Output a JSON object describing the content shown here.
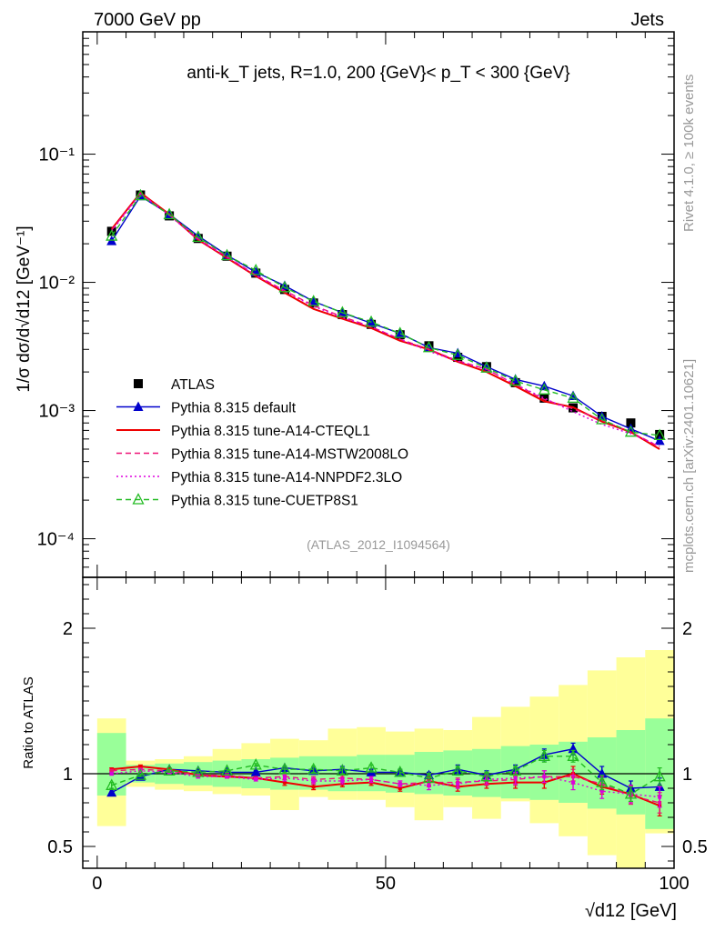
{
  "header": {
    "left": "7000 GeV pp",
    "right": "Jets"
  },
  "side_texts": {
    "rivet": "Rivet 4.1.0, ≥ 100k events",
    "mcplots": "mcplots.cern.ch [arXiv:2401.10621]"
  },
  "plot_title": "anti-k_T jets, R=1.0, 200 {GeV}< p_T < 300 {GeV}",
  "analysis_id": "(ATLAS_2012_I1094564)",
  "colors": {
    "atlas": "#000000",
    "default": "#0000cc",
    "cteql1": "#ee0000",
    "mstw": "#ee1177",
    "nnpdf": "#dd00dd",
    "cuetp8s1": "#22bb22",
    "band_inner": "#99ff99",
    "band_outer": "#ffff99"
  },
  "chart_data": [
    {
      "type": "line",
      "panel": "main",
      "ylabel": "1/σ dσ/d√d12 [GeV⁻¹]",
      "yscale": "log",
      "ylim": [
        5e-05,
        0.9
      ],
      "xlim": [
        -2.5,
        100
      ],
      "y_ticks": [
        {
          "value": 0.1,
          "label": "10⁻¹"
        },
        {
          "value": 0.01,
          "label": "10⁻²"
        },
        {
          "value": 0.001,
          "label": "10⁻³"
        },
        {
          "value": 0.0001,
          "label": "10⁻⁴"
        }
      ],
      "x": [
        2.5,
        7.5,
        12.5,
        17.5,
        22.5,
        27.5,
        32.5,
        37.5,
        42.5,
        47.5,
        52.5,
        57.5,
        62.5,
        67.5,
        72.5,
        77.5,
        82.5,
        87.5,
        92.5,
        97.5
      ],
      "series": [
        {
          "name": "ATLAS",
          "key": "atlas",
          "style": "square",
          "values": [
            0.025,
            0.048,
            0.033,
            0.022,
            0.016,
            0.0118,
            0.0088,
            0.0069,
            0.0056,
            0.0047,
            0.0039,
            0.0032,
            0.0026,
            0.0022,
            0.00165,
            0.00125,
            0.00105,
            0.0009,
            0.0008,
            0.00065
          ]
        },
        {
          "name": "Pythia 8.315 default",
          "key": "default",
          "style": "triangle-filled",
          "values": [
            0.021,
            0.047,
            0.034,
            0.023,
            0.0163,
            0.012,
            0.0094,
            0.0071,
            0.0058,
            0.0048,
            0.004,
            0.0031,
            0.0028,
            0.0022,
            0.00175,
            0.00155,
            0.0013,
            0.0009,
            0.00072,
            0.00058
          ]
        },
        {
          "name": "Pythia 8.315 tune-A14-CTEQL1",
          "key": "cteql1",
          "style": "solid",
          "values": [
            0.026,
            0.05,
            0.034,
            0.0215,
            0.0155,
            0.0112,
            0.0083,
            0.0062,
            0.0052,
            0.0044,
            0.0035,
            0.003,
            0.0024,
            0.002,
            0.00155,
            0.00118,
            0.00106,
            0.00082,
            0.00068,
            0.0005
          ]
        },
        {
          "name": "Pythia 8.315 tune-A14-MSTW2008LO",
          "key": "mstw",
          "style": "dashed",
          "values": [
            0.0255,
            0.0495,
            0.0335,
            0.0218,
            0.0158,
            0.0114,
            0.0086,
            0.0066,
            0.0054,
            0.0045,
            0.0036,
            0.003,
            0.00245,
            0.0021,
            0.0016,
            0.00122,
            0.00103,
            0.00084,
            0.00068,
            0.00052
          ]
        },
        {
          "name": "Pythia 8.315 tune-A14-NNPDF2.3LO",
          "key": "nnpdf",
          "style": "dotted",
          "values": [
            0.025,
            0.049,
            0.0333,
            0.0216,
            0.0157,
            0.0113,
            0.0085,
            0.0065,
            0.0053,
            0.0045,
            0.0036,
            0.0029,
            0.00242,
            0.0021,
            0.0016,
            0.00125,
            0.00098,
            0.00078,
            0.00066,
            0.00053
          ]
        },
        {
          "name": "Pythia 8.315 tune-CUETP8S1",
          "key": "cuetp8s1",
          "style": "triangle-open-dashed",
          "values": [
            0.023,
            0.0475,
            0.0338,
            0.0225,
            0.0162,
            0.0124,
            0.0091,
            0.0071,
            0.0058,
            0.0049,
            0.004,
            0.0031,
            0.0027,
            0.00215,
            0.0017,
            0.00145,
            0.00125,
            0.00085,
            0.00068,
            0.00064
          ]
        }
      ]
    },
    {
      "type": "line",
      "panel": "ratio",
      "ylabel": "Ratio to ATLAS",
      "xlabel": "√d12 [GeV]",
      "ylim": [
        0.35,
        2.35
      ],
      "xlim": [
        -2.5,
        100
      ],
      "x_ticks": [
        0,
        50,
        100
      ],
      "y_ticks": [
        0.5,
        1,
        2
      ],
      "x": [
        2.5,
        7.5,
        12.5,
        17.5,
        22.5,
        27.5,
        32.5,
        37.5,
        42.5,
        47.5,
        52.5,
        57.5,
        62.5,
        67.5,
        72.5,
        77.5,
        82.5,
        87.5,
        92.5,
        97.5
      ],
      "band_inner": [
        [
          0.85,
          1.28
        ],
        [
          0.94,
          1.06
        ],
        [
          0.93,
          1.07
        ],
        [
          0.92,
          1.08
        ],
        [
          0.91,
          1.09
        ],
        [
          0.9,
          1.1
        ],
        [
          0.89,
          1.11
        ],
        [
          0.89,
          1.12
        ],
        [
          0.88,
          1.12
        ],
        [
          0.88,
          1.13
        ],
        [
          0.87,
          1.13
        ],
        [
          0.86,
          1.15
        ],
        [
          0.85,
          1.16
        ],
        [
          0.84,
          1.17
        ],
        [
          0.83,
          1.19
        ],
        [
          0.82,
          1.2
        ],
        [
          0.8,
          1.22
        ],
        [
          0.76,
          1.25
        ],
        [
          0.72,
          1.3
        ],
        [
          0.62,
          1.38
        ]
      ],
      "band_outer": [
        [
          0.64,
          1.38
        ],
        [
          0.91,
          1.09
        ],
        [
          0.89,
          1.1
        ],
        [
          0.88,
          1.12
        ],
        [
          0.86,
          1.17
        ],
        [
          0.85,
          1.21
        ],
        [
          0.75,
          1.24
        ],
        [
          0.84,
          1.23
        ],
        [
          0.82,
          1.31
        ],
        [
          0.82,
          1.32
        ],
        [
          0.77,
          1.29
        ],
        [
          0.68,
          1.31
        ],
        [
          0.77,
          1.3
        ],
        [
          0.69,
          1.39
        ],
        [
          0.81,
          1.46
        ],
        [
          0.66,
          1.53
        ],
        [
          0.57,
          1.61
        ],
        [
          0.44,
          1.71
        ],
        [
          0.3,
          1.8
        ],
        [
          0.59,
          1.85
        ]
      ],
      "series": [
        {
          "name": "Pythia 8.315 default",
          "key": "default",
          "style": "triangle-filled",
          "values": [
            0.87,
            0.98,
            1.03,
            1.02,
            1.01,
            1.01,
            1.04,
            1.02,
            1.03,
            1.01,
            1.01,
            0.99,
            1.03,
            0.99,
            1.03,
            1.13,
            1.17,
            1.0,
            0.9,
            0.91
          ],
          "errors": [
            0.02,
            0.01,
            0.01,
            0.01,
            0.01,
            0.01,
            0.01,
            0.01,
            0.02,
            0.02,
            0.02,
            0.02,
            0.03,
            0.03,
            0.03,
            0.04,
            0.04,
            0.05,
            0.05,
            0.06
          ]
        },
        {
          "name": "Pythia 8.315 tune-A14-CTEQL1",
          "key": "cteql1",
          "style": "solid",
          "values": [
            1.03,
            1.05,
            1.03,
            0.99,
            0.98,
            0.97,
            0.94,
            0.91,
            0.93,
            0.94,
            0.9,
            0.95,
            0.91,
            0.93,
            0.94,
            0.94,
            1.0,
            0.91,
            0.86,
            0.78
          ],
          "errors": [
            0.01,
            0.01,
            0.01,
            0.01,
            0.01,
            0.01,
            0.02,
            0.02,
            0.02,
            0.02,
            0.02,
            0.03,
            0.03,
            0.03,
            0.04,
            0.04,
            0.05,
            0.05,
            0.06,
            0.07
          ]
        },
        {
          "name": "Pythia 8.315 tune-A14-MSTW2008LO",
          "key": "mstw",
          "style": "dashed",
          "values": [
            1.02,
            1.03,
            1.02,
            0.99,
            0.99,
            0.97,
            0.98,
            0.96,
            0.97,
            0.96,
            0.93,
            0.94,
            0.94,
            0.95,
            0.96,
            0.98,
            0.98,
            0.93,
            0.85,
            0.8
          ],
          "errors": [
            0.01,
            0.01,
            0.01,
            0.01,
            0.01,
            0.01,
            0.02,
            0.02,
            0.02,
            0.02,
            0.02,
            0.03,
            0.03,
            0.03,
            0.04,
            0.04,
            0.05,
            0.05,
            0.06,
            0.07
          ]
        },
        {
          "name": "Pythia 8.315 tune-A14-NNPDF2.3LO",
          "key": "nnpdf",
          "style": "dotted",
          "values": [
            1.0,
            1.02,
            1.01,
            0.98,
            0.98,
            0.96,
            0.97,
            0.95,
            0.95,
            0.96,
            0.93,
            0.92,
            0.93,
            0.96,
            0.97,
            0.98,
            0.94,
            0.88,
            0.86,
            0.84
          ],
          "errors": [
            0.01,
            0.01,
            0.01,
            0.01,
            0.01,
            0.01,
            0.02,
            0.02,
            0.02,
            0.02,
            0.02,
            0.03,
            0.03,
            0.03,
            0.04,
            0.04,
            0.05,
            0.05,
            0.06,
            0.07
          ]
        },
        {
          "name": "Pythia 8.315 tune-CUETP8S1",
          "key": "cuetp8s1",
          "style": "triangle-open-dashed",
          "values": [
            0.92,
            0.99,
            1.02,
            1.01,
            1.02,
            1.06,
            1.03,
            1.03,
            1.02,
            1.04,
            1.01,
            0.97,
            1.02,
            0.98,
            1.02,
            1.12,
            1.12,
            0.94,
            0.86,
            0.98
          ],
          "errors": [
            0.02,
            0.01,
            0.01,
            0.01,
            0.01,
            0.01,
            0.02,
            0.02,
            0.02,
            0.02,
            0.02,
            0.03,
            0.03,
            0.03,
            0.03,
            0.04,
            0.04,
            0.05,
            0.05,
            0.06
          ]
        }
      ]
    }
  ]
}
